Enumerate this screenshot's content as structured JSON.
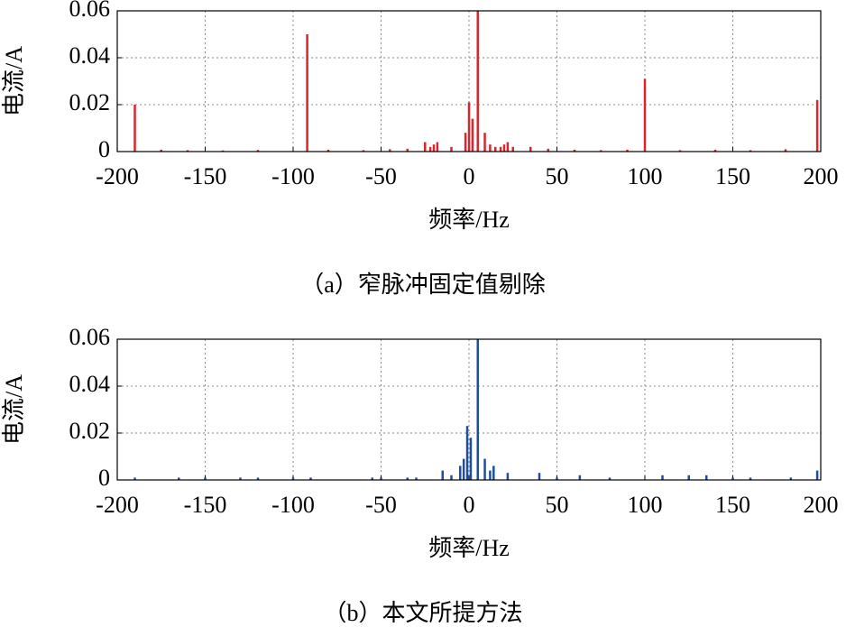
{
  "chart_data": [
    {
      "type": "stem",
      "caption": "（a）窄脉冲固定值剔除",
      "xlabel": "频率/Hz",
      "ylabel": "电流/A",
      "color": "#d9262c",
      "xlim": [
        -200,
        200
      ],
      "xticks": [
        -200,
        -150,
        -100,
        -50,
        0,
        50,
        100,
        150,
        200
      ],
      "ylim": [
        0,
        0.06
      ],
      "yticks": [
        0,
        0.02,
        0.04,
        0.06
      ],
      "grid": true,
      "x": [
        -190,
        -175,
        -160,
        -140,
        -120,
        -92,
        -80,
        -60,
        -45,
        -35,
        -25,
        -22,
        -20,
        -18,
        -10,
        -2,
        0,
        2,
        5,
        9,
        12,
        15,
        18,
        20,
        22,
        25,
        35,
        45,
        60,
        75,
        90,
        100,
        120,
        140,
        160,
        180,
        198
      ],
      "values": [
        0.02,
        0.0008,
        0.0006,
        0.0005,
        0.0007,
        0.05,
        0.0008,
        0.0006,
        0.001,
        0.0012,
        0.004,
        0.002,
        0.003,
        0.004,
        0.002,
        0.008,
        0.021,
        0.014,
        0.06,
        0.008,
        0.003,
        0.002,
        0.002,
        0.003,
        0.004,
        0.002,
        0.002,
        0.0012,
        0.0008,
        0.0006,
        0.0008,
        0.031,
        0.0006,
        0.0008,
        0.0006,
        0.001,
        0.022
      ]
    },
    {
      "type": "stem",
      "caption": "（b）本文所提方法",
      "xlabel": "频率/Hz",
      "ylabel": "电流/A",
      "color": "#1f4e9c",
      "xlim": [
        -200,
        200
      ],
      "xticks": [
        -200,
        -150,
        -100,
        -50,
        0,
        50,
        100,
        150,
        200
      ],
      "ylim": [
        0,
        0.06
      ],
      "yticks": [
        0,
        0.02,
        0.04,
        0.06
      ],
      "grid": true,
      "x": [
        -190,
        -165,
        -150,
        -130,
        -120,
        -100,
        -90,
        -55,
        -50,
        -35,
        -30,
        -15,
        -10,
        -5,
        -3,
        -1,
        1,
        5,
        9,
        12,
        14,
        22,
        40,
        50,
        63,
        80,
        110,
        125,
        135,
        150,
        160,
        183,
        198
      ],
      "values": [
        0.001,
        0.001,
        0.001,
        0.001,
        0.001,
        0.001,
        0.001,
        0.001,
        0.001,
        0.001,
        0.001,
        0.004,
        0.002,
        0.006,
        0.009,
        0.023,
        0.018,
        0.06,
        0.009,
        0.004,
        0.006,
        0.003,
        0.003,
        0.001,
        0.002,
        0.001,
        0.002,
        0.002,
        0.002,
        0.001,
        0.001,
        0.001,
        0.004
      ]
    }
  ]
}
